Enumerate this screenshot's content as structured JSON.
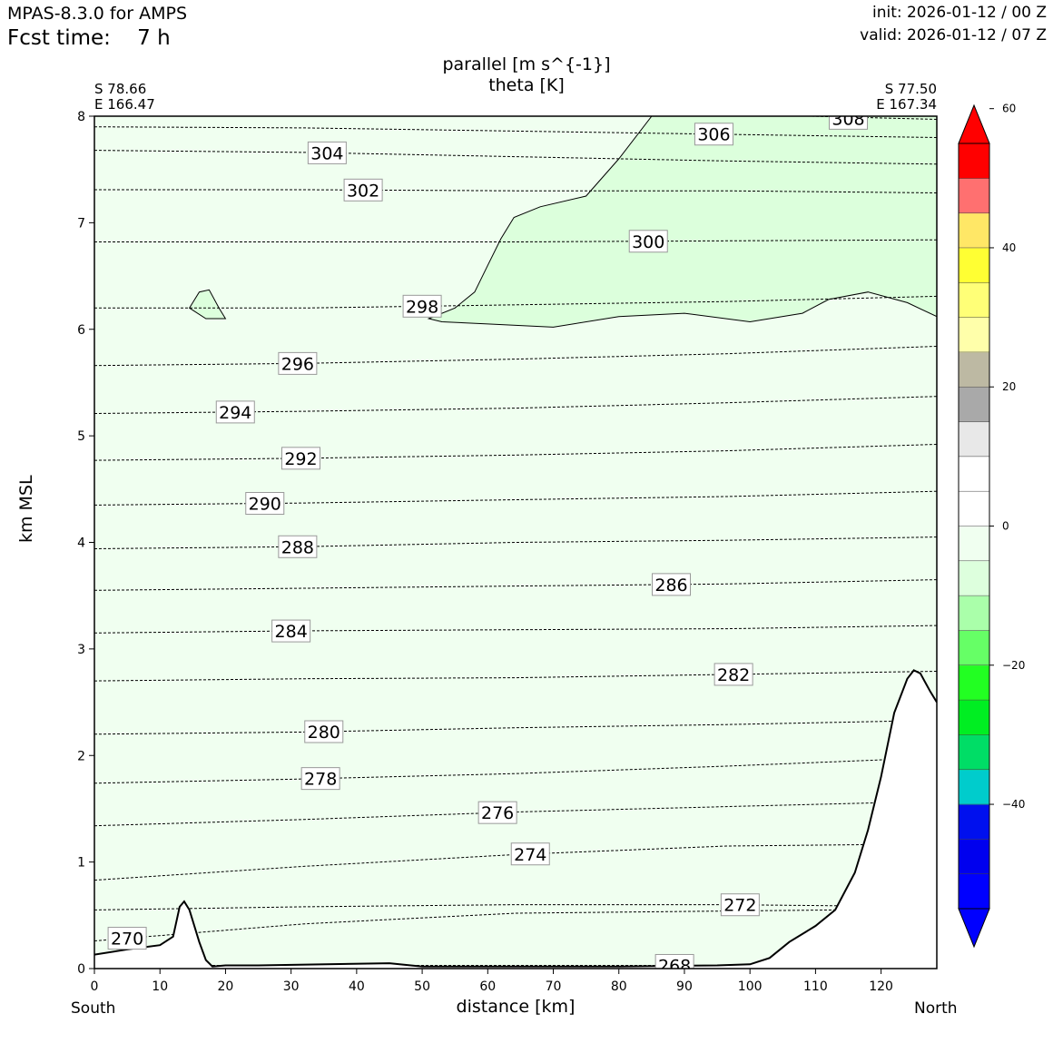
{
  "header": {
    "model": "MPAS-8.3.0 for AMPS",
    "fcst_label": "Fcst time:",
    "fcst_value": "7 h",
    "init": "init: 2026-01-12 / 00 Z",
    "valid": "valid: 2026-01-12 / 07 Z"
  },
  "chart_data": {
    "type": "cross-section",
    "title_lines": [
      "parallel [m s^{-1}]",
      "theta [K]"
    ],
    "xlabel": "distance [km]",
    "ylabel": "km MSL",
    "xlim": [
      0,
      128.5
    ],
    "ylim": [
      0,
      8
    ],
    "xticks": [
      0,
      10,
      20,
      30,
      40,
      50,
      60,
      70,
      80,
      90,
      100,
      110,
      120
    ],
    "yticks": [
      0,
      1,
      2,
      3,
      4,
      5,
      6,
      7,
      8
    ],
    "start_point": {
      "lat": "S 78.66",
      "lon": "E 166.47",
      "direction": "South"
    },
    "end_point": {
      "lat": "S 77.50",
      "lon": "E 167.34",
      "direction": "North"
    },
    "colorbar": {
      "ticks": [
        60,
        40,
        20,
        0,
        -20,
        -40
      ],
      "tick_labels": [
        "60",
        "40",
        "20",
        "0",
        "−20",
        "−40"
      ],
      "range": [
        -55,
        55
      ],
      "colors": [
        "#0000ff",
        "#0000ee",
        "#0010ee",
        "#00cccc",
        "#00dd66",
        "#00ee22",
        "#22ff22",
        "#66ff66",
        "#aaffaa",
        "#ddffdd",
        "#f0fff0",
        "#ffffff",
        "#ffffff",
        "#e8e8e8",
        "#a9a9a9",
        "#bdb9a3",
        "#ffffaa",
        "#ffff77",
        "#ffff33",
        "#ffe766",
        "#ff7070",
        "#ff0000"
      ]
    },
    "theta_contours": [
      {
        "label": "268",
        "y": [
          0.03,
          0.03,
          0.03,
          0.03,
          0.03
        ],
        "label_x": 88.5
      },
      {
        "label": "270",
        "y": [
          0.26,
          0.42,
          0.52,
          0.54,
          0.56
        ],
        "label_x": 5
      },
      {
        "label": "272",
        "y": [
          0.55,
          0.58,
          0.6,
          0.6,
          0.58
        ],
        "label_x": 98.5
      },
      {
        "label": "274",
        "y": [
          0.83,
          0.96,
          1.07,
          1.15,
          1.17
        ],
        "label_x": 66.5
      },
      {
        "label": "276",
        "y": [
          1.34,
          1.4,
          1.47,
          1.52,
          1.57
        ],
        "label_x": 61.5
      },
      {
        "label": "278",
        "y": [
          1.74,
          1.78,
          1.83,
          1.9,
          1.98
        ],
        "label_x": 34.5
      },
      {
        "label": "280",
        "y": [
          2.2,
          2.22,
          2.26,
          2.29,
          2.33
        ],
        "label_x": 35
      },
      {
        "label": "282",
        "y": [
          2.7,
          2.72,
          2.73,
          2.76,
          2.79
        ],
        "label_x": 97.5
      },
      {
        "label": "284",
        "y": [
          3.15,
          3.17,
          3.18,
          3.19,
          3.22
        ],
        "label_x": 30
      },
      {
        "label": "286",
        "y": [
          3.55,
          3.57,
          3.59,
          3.61,
          3.65
        ],
        "label_x": 88
      },
      {
        "label": "288",
        "y": [
          3.94,
          3.96,
          4.0,
          4.02,
          4.05
        ],
        "label_x": 31
      },
      {
        "label": "290",
        "y": [
          4.35,
          4.37,
          4.4,
          4.43,
          4.48
        ],
        "label_x": 26
      },
      {
        "label": "292",
        "y": [
          4.77,
          4.79,
          4.82,
          4.86,
          4.92
        ],
        "label_x": 31.5
      },
      {
        "label": "294",
        "y": [
          5.21,
          5.23,
          5.26,
          5.31,
          5.37
        ],
        "label_x": 21.5
      },
      {
        "label": "296",
        "y": [
          5.66,
          5.68,
          5.72,
          5.77,
          5.84
        ],
        "label_x": 31
      },
      {
        "label": "298",
        "y": [
          6.2,
          6.2,
          6.23,
          6.26,
          6.31
        ],
        "label_x": 50
      },
      {
        "label": "300",
        "y": [
          6.82,
          6.82,
          6.82,
          6.83,
          6.84
        ],
        "label_x": 84.5
      },
      {
        "label": "302",
        "y": [
          7.31,
          7.31,
          7.3,
          7.3,
          7.28
        ],
        "label_x": 41
      },
      {
        "label": "304",
        "y": [
          7.68,
          7.66,
          7.62,
          7.58,
          7.55
        ],
        "label_x": 35.5
      },
      {
        "label": "306",
        "y": [
          7.9,
          7.89,
          7.86,
          7.83,
          7.8
        ],
        "label_x": 94.5
      },
      {
        "label": "308",
        "y": [
          8.05,
          8.05,
          8.04,
          8.02,
          7.97
        ],
        "label_x": 115
      }
    ],
    "terrain": [
      [
        0,
        0.13
      ],
      [
        5,
        0.18
      ],
      [
        10,
        0.22
      ],
      [
        12,
        0.3
      ],
      [
        13,
        0.58
      ],
      [
        13.7,
        0.63
      ],
      [
        14.5,
        0.55
      ],
      [
        16,
        0.25
      ],
      [
        17,
        0.08
      ],
      [
        18,
        0.02
      ],
      [
        20,
        0.03
      ],
      [
        25,
        0.03
      ],
      [
        45,
        0.05
      ],
      [
        50,
        0.02
      ],
      [
        60,
        0.02
      ],
      [
        80,
        0.02
      ],
      [
        95,
        0.03
      ],
      [
        100,
        0.04
      ],
      [
        103,
        0.1
      ],
      [
        106,
        0.25
      ],
      [
        110,
        0.4
      ],
      [
        113,
        0.55
      ],
      [
        116,
        0.9
      ],
      [
        118,
        1.3
      ],
      [
        120,
        1.8
      ],
      [
        122,
        2.4
      ],
      [
        124,
        2.72
      ],
      [
        125,
        2.8
      ],
      [
        126,
        2.77
      ],
      [
        127.5,
        2.6
      ],
      [
        128.5,
        2.5
      ]
    ],
    "wind_regions": [
      {
        "name": "upper-green",
        "color": "#dcffdc",
        "points": [
          [
            51,
            6.1
          ],
          [
            55,
            6.2
          ],
          [
            58,
            6.35
          ],
          [
            60,
            6.6
          ],
          [
            62,
            6.85
          ],
          [
            64,
            7.05
          ],
          [
            68,
            7.15
          ],
          [
            75,
            7.25
          ],
          [
            80,
            7.6
          ],
          [
            85,
            8
          ],
          [
            128.5,
            8
          ],
          [
            128.5,
            6.12
          ],
          [
            124,
            6.25
          ],
          [
            118,
            6.35
          ],
          [
            112,
            6.28
          ],
          [
            108,
            6.15
          ],
          [
            100,
            6.07
          ],
          [
            90,
            6.15
          ],
          [
            80,
            6.12
          ],
          [
            70,
            6.02
          ],
          [
            60,
            6.05
          ],
          [
            53,
            6.07
          ]
        ]
      },
      {
        "name": "small-green",
        "color": "#dcffdc",
        "points": [
          [
            14.5,
            6.2
          ],
          [
            16,
            6.35
          ],
          [
            17.5,
            6.37
          ],
          [
            19,
            6.2
          ],
          [
            20,
            6.1
          ],
          [
            17,
            6.1
          ]
        ]
      }
    ]
  }
}
